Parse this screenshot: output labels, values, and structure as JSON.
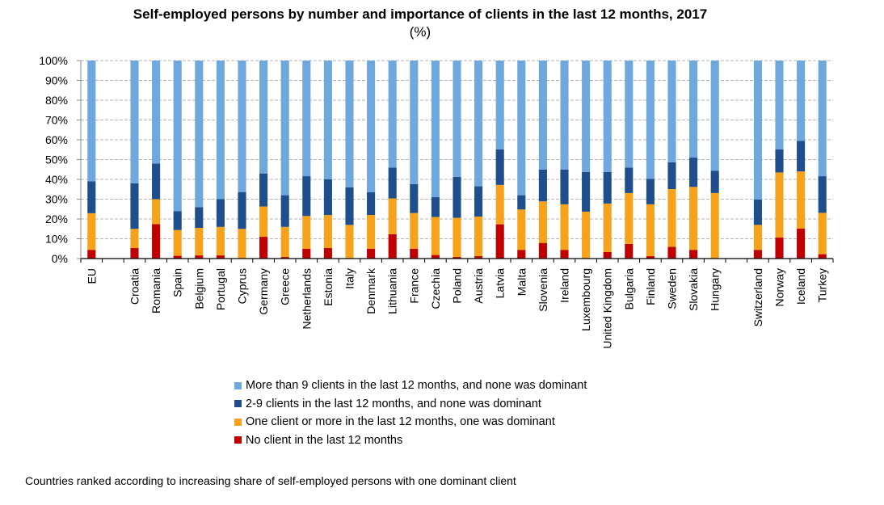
{
  "chart_data": {
    "type": "bar",
    "stacked": true,
    "title": "Self-employed persons by number and importance of clients in the last 12 months, 2017",
    "subtitle": "(%)",
    "xlabel": "",
    "ylabel": "",
    "ylim": [
      0,
      100
    ],
    "yticks": [
      "0%",
      "10%",
      "20%",
      "30%",
      "40%",
      "50%",
      "60%",
      "70%",
      "80%",
      "90%",
      "100%"
    ],
    "grid": true,
    "legend_position": "bottom",
    "slots": [
      "EU",
      null,
      "Croatia",
      "Romania",
      "Spain",
      "Belgium",
      "Portugal",
      "Cyprus",
      "Germany",
      "Greece",
      "Netherlands",
      "Estonia",
      "Italy",
      "Denmark",
      "Lithuania",
      "France",
      "Czechia",
      "Poland",
      "Austria",
      "Latvia",
      "Malta",
      "Slovenia",
      "Ireland",
      "Luxembourg",
      "United Kingdom",
      "Bulgaria",
      "Finland",
      "Sweden",
      "Slovakia",
      "Hungary",
      null,
      "Switzerland",
      "Norway",
      "Iceland",
      "Turkey"
    ],
    "categories": [
      "EU",
      "Croatia",
      "Romania",
      "Spain",
      "Belgium",
      "Portugal",
      "Cyprus",
      "Germany",
      "Greece",
      "Netherlands",
      "Estonia",
      "Italy",
      "Denmark",
      "Lithuania",
      "France",
      "Czechia",
      "Poland",
      "Austria",
      "Latvia",
      "Malta",
      "Slovenia",
      "Ireland",
      "Luxembourg",
      "United Kingdom",
      "Bulgaria",
      "Finland",
      "Sweden",
      "Slovakia",
      "Hungary",
      "Switzerland",
      "Norway",
      "Iceland",
      "Turkey"
    ],
    "series": [
      {
        "name": "No client in the last 12 months",
        "color": "#c00000",
        "values": [
          4.4,
          5.3,
          17.4,
          1.4,
          1.6,
          1.6,
          0,
          11,
          0.8,
          4.9,
          5.3,
          0,
          5,
          12.3,
          5,
          1.8,
          0.8,
          1.2,
          17.3,
          4.4,
          7.9,
          4.4,
          0,
          3.3,
          7.4,
          1.2,
          5.9,
          4.4,
          0,
          4.4,
          10.6,
          15.1,
          2.2
        ]
      },
      {
        "name": "One client or more in the last 12 months, one was dominant",
        "color": "#f7a21b",
        "values": [
          18.5,
          9.7,
          12.6,
          13,
          13.9,
          14.4,
          15,
          15.3,
          15.2,
          16.6,
          16.7,
          17,
          17,
          18.1,
          18,
          19.2,
          19.8,
          20,
          19.9,
          20.4,
          21,
          23,
          23.7,
          24.5,
          25.7,
          26.2,
          29.2,
          31.8,
          33.1,
          12.6,
          32.9,
          28.9,
          20.9
        ]
      },
      {
        "name": "2-9 clients in the last 12 months, and none was dominant",
        "color": "#1f4e8c",
        "values": [
          16.1,
          23,
          18,
          9.6,
          10.5,
          14,
          18.6,
          16.7,
          16,
          20.1,
          18,
          19,
          11.5,
          15.6,
          14.6,
          10,
          20.7,
          15.3,
          18,
          7.2,
          16.1,
          17.6,
          20,
          15.9,
          12.9,
          12.8,
          13.5,
          14.8,
          11.3,
          12.8,
          11.6,
          15.5,
          18.5
        ]
      },
      {
        "name": "More than 9 clients in the last 12 months, and none was dominant",
        "color": "#6fa8dc",
        "values": [
          61,
          62,
          52,
          76,
          74,
          70,
          66.4,
          57,
          68,
          58.4,
          60,
          64,
          66.5,
          54,
          62.4,
          69,
          58.7,
          63.5,
          44.8,
          68,
          55,
          55,
          56.3,
          56.3,
          54,
          59.8,
          51.4,
          49,
          55.6,
          70.2,
          44.9,
          40.5,
          58.4
        ]
      }
    ],
    "legend_order": [
      "More than 9 clients in the last 12 months, and none was dominant",
      "2-9 clients in the last 12 months, and none was dominant",
      "One client or more in the last 12 months, one was dominant",
      "No client in the last 12 months"
    ],
    "annotation": "Countries ranked according to increasing share of self-employed persons with one dominant client"
  },
  "legend": [
    {
      "label": "More than 9 clients in the last 12 months, and none was dominant",
      "color": "#6fa8dc"
    },
    {
      "label": "2-9 clients in the last 12 months, and none was dominant",
      "color": "#1f4e8c"
    },
    {
      "label": "One client or more in the last 12 months, one was dominant",
      "color": "#f7a21b"
    },
    {
      "label": "No client in the last 12 months",
      "color": "#c00000"
    }
  ]
}
